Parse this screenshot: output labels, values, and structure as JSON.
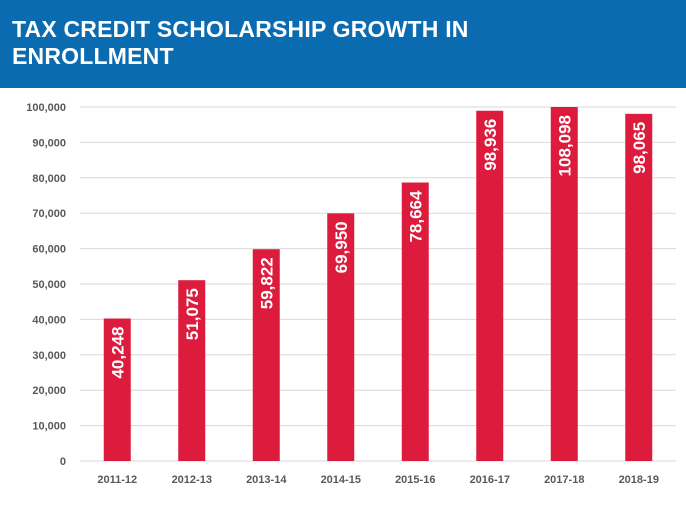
{
  "title": "TAX CREDIT SCHOLARSHIP GROWTH IN ENROLLMENT",
  "colors": {
    "header_bg": "#0b6bb0",
    "bar": "#dd1b3c",
    "grid": "#d9d9d9",
    "text": "#595959"
  },
  "chart_data": {
    "type": "bar",
    "categories": [
      "2011-12",
      "2012-13",
      "2013-14",
      "2014-15",
      "2015-16",
      "2016-17",
      "2017-18",
      "2018-19"
    ],
    "values": [
      40248,
      51075,
      59822,
      69950,
      78664,
      98936,
      108098,
      98065
    ],
    "data_labels": [
      "40,248",
      "51,075",
      "59,822",
      "69,950",
      "78,664",
      "98,936",
      "108,098",
      "98,065"
    ],
    "yticks": [
      "0",
      "10,000",
      "20,000",
      "30,000",
      "40,000",
      "50,000",
      "60,000",
      "70,000",
      "80,000",
      "90,000",
      "100,000"
    ],
    "ylim": [
      0,
      100000
    ],
    "grid": true,
    "legend": "none",
    "data_label_orientation": "vertical"
  }
}
